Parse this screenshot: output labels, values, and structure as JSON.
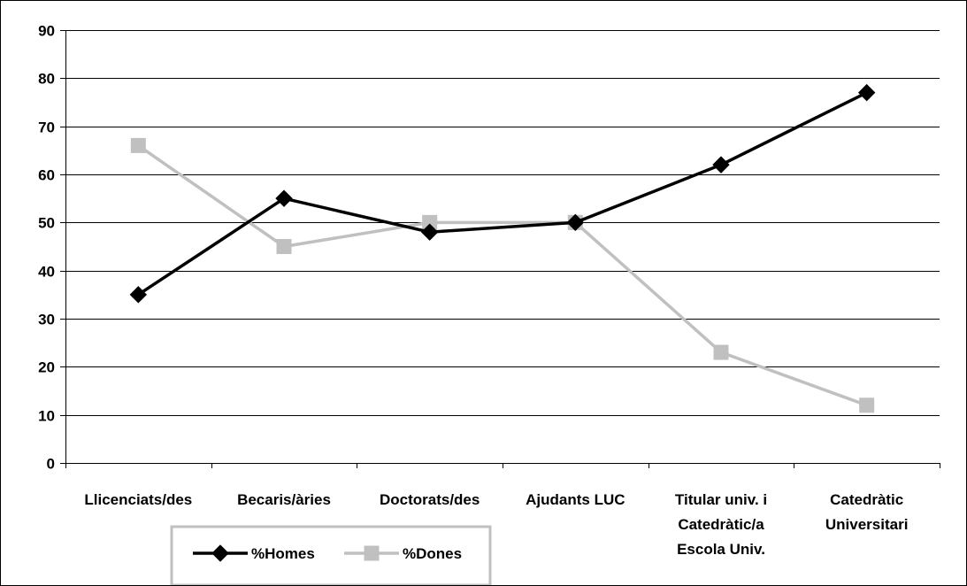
{
  "chart_data": {
    "type": "line",
    "title": "",
    "xlabel": "",
    "ylabel": "",
    "categories": [
      [
        "Llicenciats/des"
      ],
      [
        "Becaris/àries"
      ],
      [
        "Doctorats/des"
      ],
      [
        "Ajudants LUC"
      ],
      [
        "Titular univ. i",
        "Catedràtic/a",
        "Escola Univ."
      ],
      [
        "Catedràtic",
        "Universitari"
      ]
    ],
    "ylim": [
      0,
      90
    ],
    "yticks": [
      "0",
      "10",
      "20",
      "30",
      "40",
      "50",
      "60",
      "70",
      "80",
      "90"
    ],
    "grid": true,
    "legend_position": "bottom",
    "series": [
      {
        "name": "%Homes",
        "values": [
          35,
          55,
          48,
          50,
          62,
          77
        ],
        "color": "#000000",
        "marker": "diamond"
      },
      {
        "name": "%Dones",
        "values": [
          66,
          45,
          50,
          50,
          23,
          12
        ],
        "color": "#c0c0c0",
        "marker": "square"
      }
    ]
  }
}
